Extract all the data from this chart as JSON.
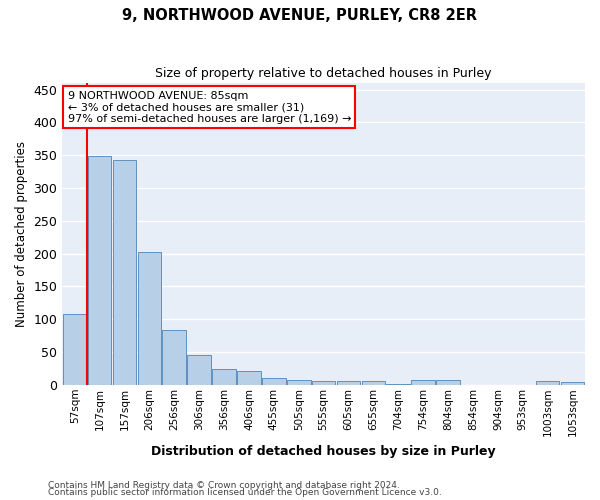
{
  "title": "9, NORTHWOOD AVENUE, PURLEY, CR8 2ER",
  "subtitle": "Size of property relative to detached houses in Purley",
  "xlabel": "Distribution of detached houses by size in Purley",
  "ylabel": "Number of detached properties",
  "categories": [
    "57sqm",
    "107sqm",
    "157sqm",
    "206sqm",
    "256sqm",
    "306sqm",
    "356sqm",
    "406sqm",
    "455sqm",
    "505sqm",
    "555sqm",
    "605sqm",
    "655sqm",
    "704sqm",
    "754sqm",
    "804sqm",
    "854sqm",
    "904sqm",
    "953sqm",
    "1003sqm",
    "1053sqm"
  ],
  "values": [
    108,
    349,
    343,
    202,
    84,
    46,
    24,
    21,
    10,
    8,
    6,
    6,
    5,
    1,
    7,
    7,
    0,
    0,
    0,
    5,
    4
  ],
  "bar_color": "#b8cfe8",
  "bar_edge_color": "#6090c0",
  "bg_color": "#e8eef8",
  "grid_color": "#ffffff",
  "annotation_line1": "9 NORTHWOOD AVENUE: 85sqm",
  "annotation_line2": "← 3% of detached houses are smaller (31)",
  "annotation_line3": "97% of semi-detached houses are larger (1,169) →",
  "ylim": [
    0,
    460
  ],
  "yticks": [
    0,
    50,
    100,
    150,
    200,
    250,
    300,
    350,
    400,
    450
  ],
  "vline_x": 0.5,
  "footer1": "Contains HM Land Registry data © Crown copyright and database right 2024.",
  "footer2": "Contains public sector information licensed under the Open Government Licence v3.0."
}
